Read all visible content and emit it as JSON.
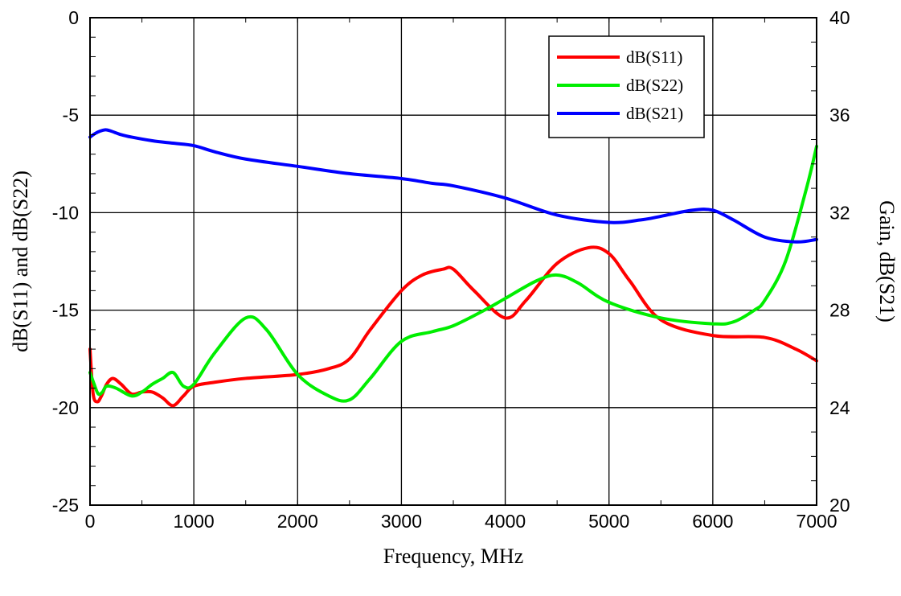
{
  "chart_data": {
    "type": "line",
    "title": "",
    "xlabel": "Frequency, MHz",
    "ylabel_left": "dB(S11) and dB(S22)",
    "ylabel_right": "Gain, dB(S21)",
    "xlim": [
      0,
      7000
    ],
    "ylim_left": [
      -25,
      0
    ],
    "ylim_right": [
      20,
      40
    ],
    "x_ticks": [
      0,
      1000,
      2000,
      3000,
      4000,
      5000,
      6000,
      7000
    ],
    "x_tick_labels": [
      "0",
      "1000",
      "2000",
      "3000",
      "4000",
      "5000",
      "6000",
      "7000"
    ],
    "y_left_ticks": [
      0,
      -5,
      -10,
      -15,
      -20,
      -25
    ],
    "y_left_tick_labels": [
      "0",
      "-5",
      "-10",
      "-15",
      "-20",
      "-25"
    ],
    "y_right_ticks": [
      40,
      36,
      32,
      28,
      24,
      20
    ],
    "y_right_tick_labels": [
      "40",
      "36",
      "32",
      "28",
      "24",
      "20"
    ],
    "grid": true,
    "legend_position": "top-right",
    "series": [
      {
        "name": "dB(S11)",
        "axis": "left",
        "color": "#ff0000",
        "x": [
          0,
          30,
          70,
          110,
          160,
          220,
          300,
          400,
          500,
          600,
          700,
          800,
          900,
          1000,
          1200,
          1500,
          2000,
          2300,
          2500,
          2700,
          3000,
          3200,
          3400,
          3500,
          3700,
          4000,
          4200,
          4500,
          4800,
          5000,
          5200,
          5500,
          6000,
          6500,
          6800,
          7000
        ],
        "y": [
          -17.0,
          -19.3,
          -19.7,
          -19.4,
          -18.8,
          -18.5,
          -18.8,
          -19.3,
          -19.2,
          -19.2,
          -19.5,
          -19.9,
          -19.4,
          -18.9,
          -18.7,
          -18.5,
          -18.3,
          -18.0,
          -17.5,
          -16.0,
          -14.0,
          -13.2,
          -12.9,
          -12.9,
          -14.0,
          -15.4,
          -14.5,
          -12.6,
          -11.8,
          -12.1,
          -13.5,
          -15.5,
          -16.3,
          -16.4,
          -17.0,
          -17.6
        ]
      },
      {
        "name": "dB(S22)",
        "axis": "left",
        "color": "#00ee00",
        "x": [
          0,
          40,
          80,
          120,
          160,
          250,
          400,
          500,
          600,
          700,
          800,
          900,
          1000,
          1200,
          1500,
          1700,
          2000,
          2300,
          2500,
          2700,
          3000,
          3300,
          3500,
          3800,
          4000,
          4300,
          4500,
          4700,
          5000,
          5500,
          6000,
          6200,
          6400,
          6500,
          6700,
          6900,
          7000
        ],
        "y": [
          -18.2,
          -18.8,
          -19.3,
          -19.2,
          -18.9,
          -19.0,
          -19.4,
          -19.2,
          -18.8,
          -18.5,
          -18.2,
          -18.9,
          -18.8,
          -17.2,
          -15.4,
          -16.0,
          -18.3,
          -19.4,
          -19.6,
          -18.5,
          -16.6,
          -16.1,
          -15.8,
          -15.0,
          -14.4,
          -13.5,
          -13.2,
          -13.6,
          -14.6,
          -15.4,
          -15.7,
          -15.6,
          -15.0,
          -14.5,
          -12.5,
          -8.8,
          -6.6
        ]
      },
      {
        "name": "dB(S21)",
        "axis": "right",
        "color": "#0000ff",
        "x": [
          0,
          50,
          100,
          150,
          200,
          300,
          400,
          600,
          800,
          1000,
          1200,
          1500,
          2000,
          2500,
          3000,
          3300,
          3500,
          4000,
          4500,
          5000,
          5300,
          5500,
          5800,
          6000,
          6200,
          6500,
          6800,
          7000
        ],
        "y": [
          35.1,
          35.25,
          35.35,
          35.4,
          35.35,
          35.2,
          35.1,
          34.95,
          34.85,
          34.75,
          34.5,
          34.2,
          33.9,
          33.6,
          33.4,
          33.2,
          33.1,
          32.6,
          31.9,
          31.6,
          31.7,
          31.85,
          32.1,
          32.1,
          31.7,
          31.0,
          30.8,
          30.9
        ]
      }
    ]
  }
}
